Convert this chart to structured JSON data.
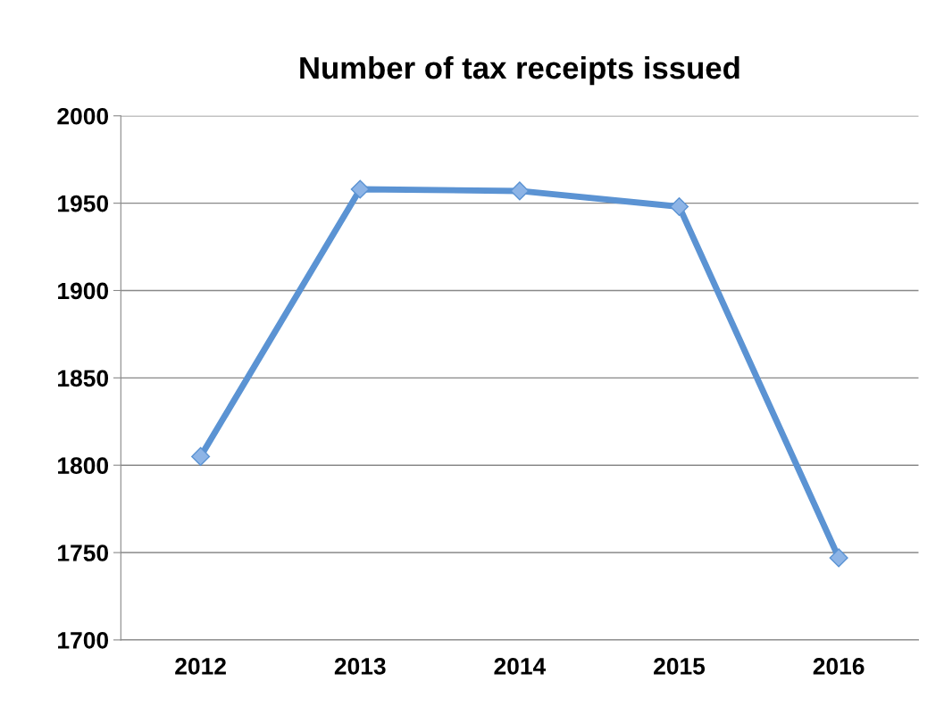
{
  "chart_data": {
    "type": "line",
    "title": "Number of tax receipts issued",
    "categories": [
      "2012",
      "2013",
      "2014",
      "2015",
      "2016"
    ],
    "series": [
      {
        "color": "#5b93d3",
        "values": [
          1805,
          1958,
          1957,
          1948,
          1747
        ]
      }
    ],
    "ylim": [
      1700,
      2000
    ],
    "yticks": [
      1700,
      1750,
      1800,
      1850,
      1900,
      1950,
      2000
    ],
    "grid": "y",
    "marker": "diamond",
    "line_style": "solid"
  }
}
